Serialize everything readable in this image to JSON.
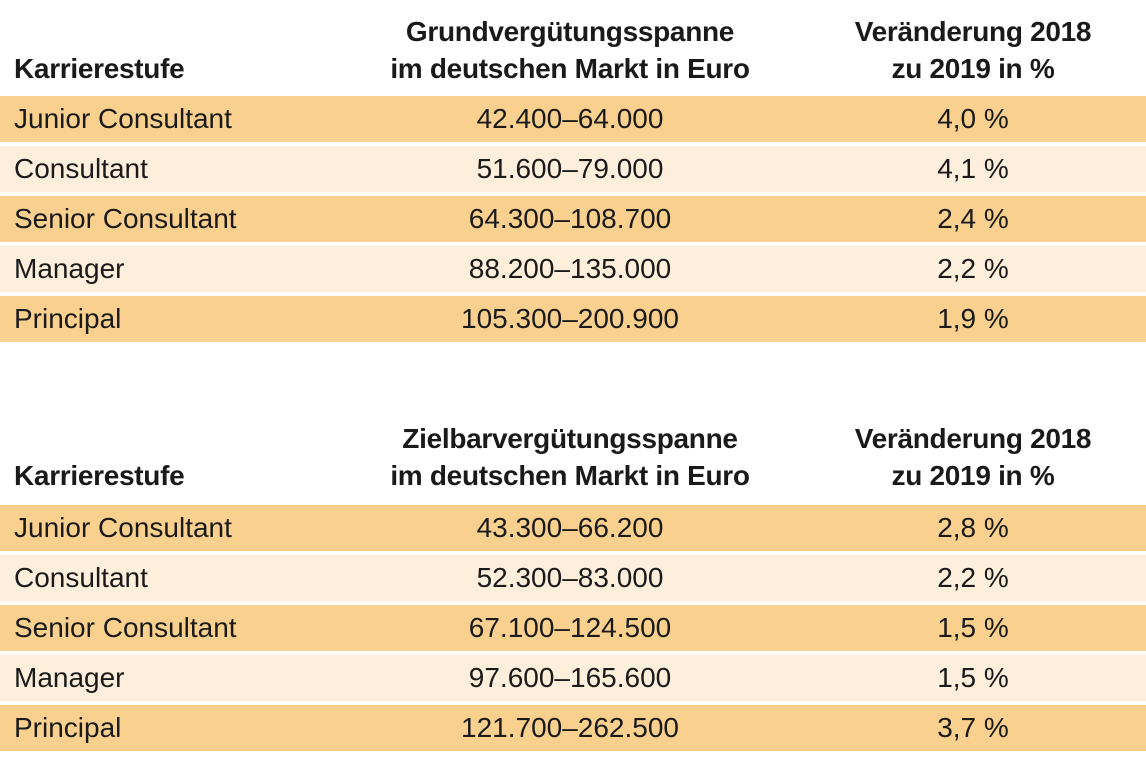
{
  "colors": {
    "row_orange": "#fad08e",
    "row_cream": "#fdefdb",
    "background": "#ffffff",
    "text": "#1a1a1a"
  },
  "tables": [
    {
      "name": "Grundvergütung",
      "headers": {
        "col1": "Karrierestufe",
        "col2_line1": "Grundvergütungsspanne",
        "col2_line2": "im deutschen Markt in Euro",
        "col3_line1": "Veränderung 2018",
        "col3_line2": "zu 2019 in %"
      },
      "rows": [
        {
          "level": "Junior Consultant",
          "range": "42.400–64.000",
          "change": "4,0 %"
        },
        {
          "level": "Consultant",
          "range": "51.600–79.000",
          "change": "4,1 %"
        },
        {
          "level": "Senior Consultant",
          "range": "64.300–108.700",
          "change": "2,4 %"
        },
        {
          "level": "Manager",
          "range": "88.200–135.000",
          "change": "2,2 %"
        },
        {
          "level": "Principal",
          "range": "105.300–200.900",
          "change": "1,9 %"
        }
      ]
    },
    {
      "name": "Zielbarvergütung",
      "headers": {
        "col1": "Karrierestufe",
        "col2_line1": "Zielbarvergütungsspanne",
        "col2_line2": "im deutschen Markt in Euro",
        "col3_line1": "Veränderung 2018",
        "col3_line2": "zu 2019 in %"
      },
      "rows": [
        {
          "level": "Junior Consultant",
          "range": "43.300–66.200",
          "change": "2,8 %"
        },
        {
          "level": "Consultant",
          "range": "52.300–83.000",
          "change": "2,2 %"
        },
        {
          "level": "Senior Consultant",
          "range": "67.100–124.500",
          "change": "1,5 %"
        },
        {
          "level": "Manager",
          "range": "97.600–165.600",
          "change": "1,5 %"
        },
        {
          "level": "Principal",
          "range": "121.700–262.500",
          "change": "3,7 %"
        }
      ]
    }
  ]
}
